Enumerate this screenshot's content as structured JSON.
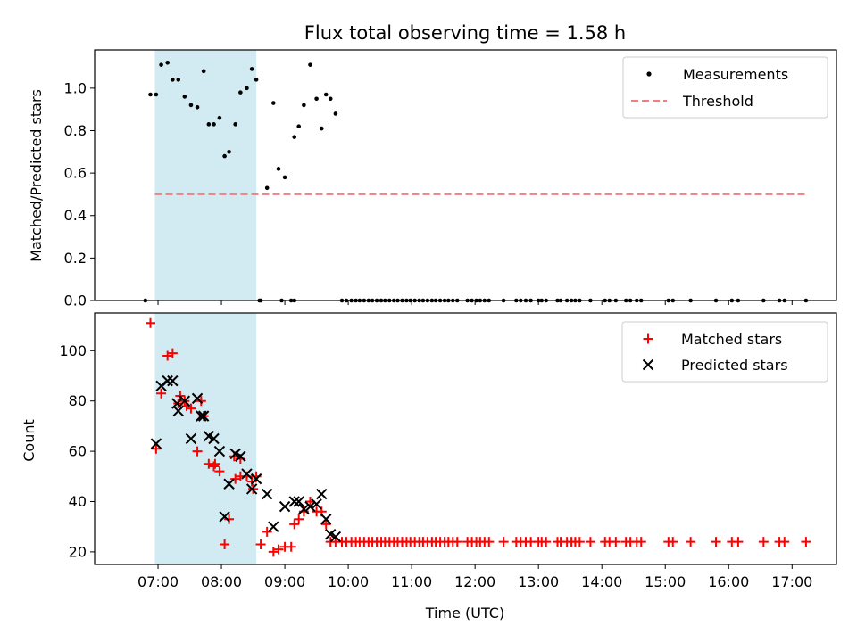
{
  "chart_data": [
    {
      "type": "scatter",
      "title": "Flux total observing time = 1.58 h",
      "ylabel": "Matched/Predicted stars",
      "xlabel": "",
      "xlim": [
        6.0,
        17.7
      ],
      "ylim": [
        0.0,
        1.18
      ],
      "yticks": [
        0.0,
        0.2,
        0.4,
        0.6,
        0.8,
        1.0
      ],
      "ytick_labels": [
        "0.0",
        "0.2",
        "0.4",
        "0.6",
        "0.8",
        "1.0"
      ],
      "shaded_interval": [
        6.95,
        8.55
      ],
      "legend": [
        "Measurements",
        "Threshold"
      ],
      "threshold": {
        "name": "Threshold",
        "value": 0.5,
        "x_range": [
          6.95,
          17.2
        ],
        "color": "#f08080"
      },
      "series": [
        {
          "name": "Measurements",
          "color": "#000000",
          "x": [
            6.88,
            6.97,
            7.05,
            7.15,
            7.23,
            7.32,
            7.42,
            7.52,
            7.62,
            7.72,
            7.8,
            7.88,
            7.97,
            8.05,
            8.12,
            8.22,
            8.3,
            8.4,
            8.48,
            8.55,
            8.62,
            8.72,
            8.82,
            8.9,
            9.0,
            9.1,
            9.15,
            9.22,
            9.3,
            9.4,
            9.5,
            9.58,
            9.65,
            9.72,
            9.8,
            6.8,
            8.6,
            8.95,
            9.15
          ],
          "y": [
            0.97,
            0.97,
            1.11,
            1.12,
            1.04,
            1.04,
            0.96,
            0.92,
            0.91,
            1.08,
            0.83,
            0.83,
            0.86,
            0.68,
            0.7,
            0.83,
            0.98,
            1.0,
            1.09,
            1.04,
            0.0,
            0.53,
            0.93,
            0.62,
            0.58,
            0.0,
            0.77,
            0.82,
            0.92,
            1.11,
            0.95,
            0.81,
            0.97,
            0.95,
            0.88,
            0.0,
            0.0,
            0.0,
            0.0
          ],
          "zeros_x": [
            9.9,
            9.97,
            10.05,
            10.12,
            10.18,
            10.25,
            10.32,
            10.38,
            10.45,
            10.52,
            10.58,
            10.65,
            10.72,
            10.78,
            10.85,
            10.92,
            10.98,
            11.05,
            11.12,
            11.18,
            11.25,
            11.32,
            11.38,
            11.45,
            11.52,
            11.58,
            11.65,
            11.72,
            11.88,
            11.95,
            12.02,
            12.08,
            12.15,
            12.22,
            12.45,
            12.65,
            12.72,
            12.8,
            12.88,
            13.0,
            13.05,
            13.12,
            13.3,
            13.35,
            13.45,
            13.52,
            13.58,
            13.65,
            13.82,
            14.05,
            14.12,
            14.22,
            14.38,
            14.45,
            14.55,
            14.62,
            15.05,
            15.12,
            15.4,
            15.8,
            16.05,
            16.15,
            16.55,
            16.8,
            16.88,
            17.22
          ]
        }
      ]
    },
    {
      "type": "scatter",
      "title": "",
      "ylabel": "Count",
      "xlabel": "Time (UTC)",
      "xlim": [
        6.0,
        17.7
      ],
      "ylim": [
        15,
        115
      ],
      "yticks": [
        20,
        40,
        60,
        80,
        100
      ],
      "ytick_labels": [
        "20",
        "40",
        "60",
        "80",
        "100"
      ],
      "xticks": [
        7,
        8,
        9,
        10,
        11,
        12,
        13,
        14,
        15,
        16,
        17
      ],
      "xtick_labels": [
        "07:00",
        "08:00",
        "09:00",
        "10:00",
        "11:00",
        "12:00",
        "13:00",
        "14:00",
        "15:00",
        "16:00",
        "17:00"
      ],
      "shaded_interval": [
        6.95,
        8.55
      ],
      "legend": [
        "Matched stars",
        "Predicted stars"
      ],
      "series": [
        {
          "name": "Matched stars",
          "color": "#ff0000",
          "marker": "plus",
          "x": [
            6.88,
            6.97,
            7.05,
            7.15,
            7.23,
            7.32,
            7.42,
            7.52,
            7.62,
            7.72,
            7.8,
            7.88,
            7.97,
            8.05,
            8.12,
            8.22,
            8.3,
            8.4,
            8.48,
            8.55,
            8.62,
            8.72,
            8.82,
            8.9,
            9.0,
            9.1,
            9.15,
            9.22,
            9.3,
            9.4,
            9.5,
            9.58,
            9.65,
            9.72,
            9.8,
            7.35,
            7.45,
            7.68,
            7.9,
            8.2,
            8.3,
            8.5
          ],
          "y": [
            111,
            61,
            83,
            98,
            99,
            79,
            80,
            77,
            60,
            74,
            55,
            54,
            52,
            23,
            33,
            49,
            57,
            50,
            48,
            50,
            23,
            28,
            20,
            21,
            22,
            22,
            31,
            33,
            36,
            40,
            36,
            36,
            31,
            24,
            24,
            82,
            78,
            80,
            55,
            58,
            50,
            45
          ],
          "flat_x": [
            9.9,
            9.97,
            10.05,
            10.12,
            10.18,
            10.25,
            10.32,
            10.38,
            10.45,
            10.52,
            10.58,
            10.65,
            10.72,
            10.78,
            10.85,
            10.92,
            10.98,
            11.05,
            11.12,
            11.18,
            11.25,
            11.32,
            11.38,
            11.45,
            11.52,
            11.58,
            11.65,
            11.72,
            11.88,
            11.95,
            12.02,
            12.08,
            12.15,
            12.22,
            12.45,
            12.65,
            12.72,
            12.8,
            12.88,
            13.0,
            13.05,
            13.12,
            13.3,
            13.35,
            13.45,
            13.52,
            13.58,
            13.65,
            13.82,
            14.05,
            14.12,
            14.22,
            14.38,
            14.45,
            14.55,
            14.62,
            15.05,
            15.12,
            15.4,
            15.8,
            16.05,
            16.15,
            16.55,
            16.8,
            16.88,
            17.22
          ],
          "flat_y": 24
        },
        {
          "name": "Predicted stars",
          "color": "#000000",
          "marker": "x",
          "x": [
            6.97,
            7.05,
            7.15,
            7.23,
            7.32,
            7.42,
            7.52,
            7.62,
            7.72,
            7.8,
            7.88,
            7.97,
            8.05,
            8.12,
            8.22,
            8.3,
            8.4,
            8.48,
            8.55,
            8.72,
            8.82,
            9.0,
            9.15,
            9.22,
            9.3,
            9.4,
            9.5,
            9.58,
            9.65,
            9.72,
            9.8,
            7.3,
            7.68
          ],
          "y": [
            63,
            86,
            88,
            88,
            76,
            80,
            65,
            81,
            74,
            66,
            65,
            60,
            34,
            47,
            59,
            58,
            51,
            45,
            49,
            43,
            30,
            38,
            40,
            40,
            37,
            38,
            39,
            43,
            33,
            27,
            26,
            79,
            74
          ]
        }
      ]
    }
  ]
}
